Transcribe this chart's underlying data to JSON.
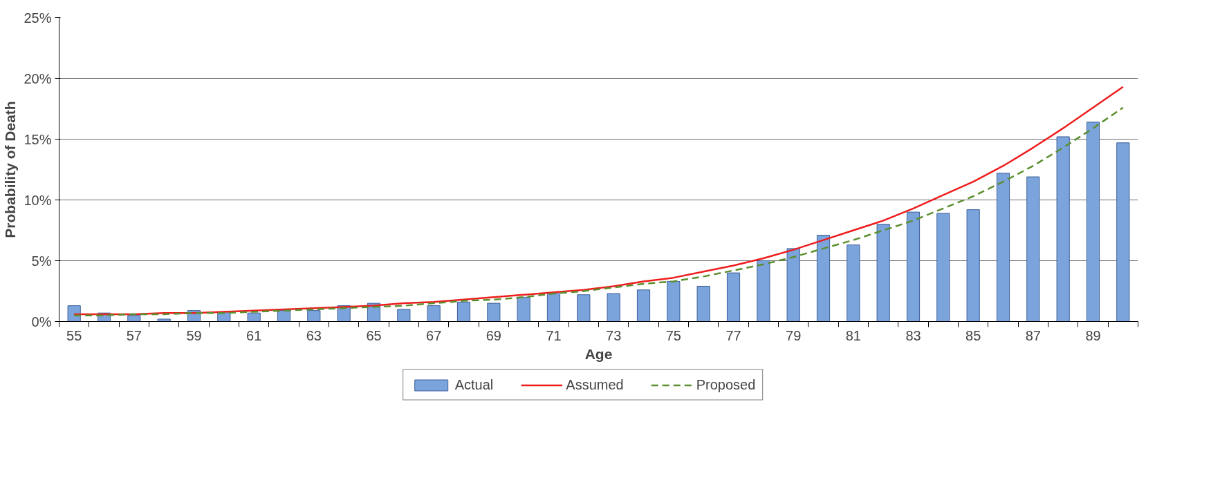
{
  "chart_data": {
    "type": "bar",
    "xlabel": "Age",
    "ylabel": "Probability of Death",
    "categories": [
      "55",
      null,
      "57",
      null,
      "59",
      null,
      "61",
      null,
      "63",
      null,
      "65",
      null,
      "67",
      null,
      "69",
      null,
      "71",
      null,
      "73",
      null,
      "75",
      null,
      "77",
      null,
      "79",
      null,
      "81",
      null,
      "83",
      null,
      "85",
      null,
      "87",
      null,
      "89",
      null
    ],
    "series": [
      {
        "name": "Actual",
        "color": "#7ba3dc",
        "values": [
          1.3,
          0.7,
          0.5,
          0.2,
          0.9,
          0.8,
          0.7,
          0.9,
          0.9,
          1.3,
          1.5,
          1.0,
          1.3,
          1.6,
          1.5,
          2.0,
          2.3,
          2.2,
          2.3,
          2.6,
          3.3,
          2.9,
          4.0,
          5.0,
          6.0,
          7.1,
          6.3,
          8.0,
          9.0,
          8.9,
          9.2,
          12.2,
          11.9,
          15.2,
          16.4,
          14.7
        ]
      },
      {
        "name": "Assumed",
        "type": "line",
        "color": "#ee1c1c",
        "line_style": "solid",
        "values": [
          0.6,
          0.6,
          0.6,
          0.7,
          0.7,
          0.8,
          0.9,
          1.0,
          1.1,
          1.2,
          1.3,
          1.5,
          1.6,
          1.8,
          2.0,
          2.2,
          2.4,
          2.6,
          2.9,
          3.3,
          3.6,
          4.1,
          4.6,
          5.2,
          5.9,
          6.7,
          7.5,
          8.3,
          9.3,
          10.4,
          11.5,
          12.8,
          14.3,
          15.9,
          17.6,
          19.3
        ]
      },
      {
        "name": "Proposed",
        "type": "line",
        "color": "#5b8f2e",
        "line_style": "dashed",
        "values": [
          0.5,
          0.5,
          0.6,
          0.6,
          0.7,
          0.7,
          0.8,
          0.9,
          1.0,
          1.1,
          1.2,
          1.3,
          1.5,
          1.7,
          1.8,
          2.0,
          2.3,
          2.5,
          2.8,
          3.1,
          3.3,
          3.7,
          4.2,
          4.7,
          5.3,
          6.0,
          6.7,
          7.5,
          8.3,
          9.3,
          10.3,
          11.5,
          12.8,
          14.3,
          15.9,
          17.6
        ]
      }
    ],
    "ylim": [
      0,
      25
    ],
    "yticks": [
      {
        "value": 0,
        "label": "0%"
      },
      {
        "value": 5,
        "label": "5%"
      },
      {
        "value": 10,
        "label": "10%"
      },
      {
        "value": 15,
        "label": "15%"
      },
      {
        "value": 20,
        "label": "20%"
      },
      {
        "value": 25,
        "label": "25%"
      }
    ],
    "grid": "y",
    "legend": "bottom"
  }
}
